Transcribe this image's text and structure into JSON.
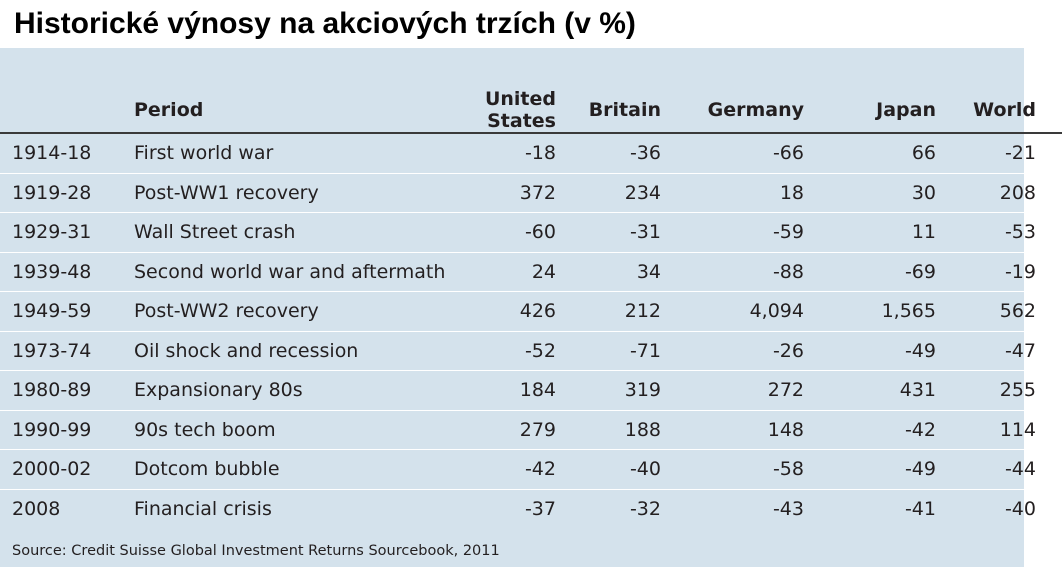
{
  "title": "Historické výnosy na akciových trzích (v %)",
  "chart_data": {
    "type": "table",
    "columns": [
      "",
      "Period",
      "United States",
      "Britain",
      "Germany",
      "Japan",
      "World"
    ],
    "rows": [
      {
        "years": "1914-18",
        "period": "First world war",
        "us": "-18",
        "gb": "-36",
        "de": "-66",
        "jp": "66",
        "world": "-21"
      },
      {
        "years": "1919-28",
        "period": "Post-WW1 recovery",
        "us": "372",
        "gb": "234",
        "de": "18",
        "jp": "30",
        "world": "208"
      },
      {
        "years": "1929-31",
        "period": "Wall Street crash",
        "us": "-60",
        "gb": "-31",
        "de": "-59",
        "jp": "11",
        "world": "-53"
      },
      {
        "years": "1939-48",
        "period": "Second world war and aftermath",
        "us": "24",
        "gb": "34",
        "de": "-88",
        "jp": "-69",
        "world": "-19"
      },
      {
        "years": "1949-59",
        "period": "Post-WW2 recovery",
        "us": "426",
        "gb": "212",
        "de": "4,094",
        "jp": "1,565",
        "world": "562"
      },
      {
        "years": "1973-74",
        "period": "Oil shock and recession",
        "us": "-52",
        "gb": "-71",
        "de": "-26",
        "jp": "-49",
        "world": "-47"
      },
      {
        "years": "1980-89",
        "period": "Expansionary 80s",
        "us": "184",
        "gb": "319",
        "de": "272",
        "jp": "431",
        "world": "255"
      },
      {
        "years": "1990-99",
        "period": "90s tech boom",
        "us": "279",
        "gb": "188",
        "de": "148",
        "jp": "-42",
        "world": "114"
      },
      {
        "years": "2000-02",
        "period": "Dotcom bubble",
        "us": "-42",
        "gb": "-40",
        "de": "-58",
        "jp": "-49",
        "world": "-44"
      },
      {
        "years": "2008",
        "period": "Financial crisis",
        "us": "-37",
        "gb": "-32",
        "de": "-43",
        "jp": "-41",
        "world": "-40"
      }
    ],
    "source": "Source: Credit Suisse Global Investment Returns Sourcebook, 2011"
  },
  "colors": {
    "panel_background": "#d4e2ec",
    "row_divider": "#ffffff",
    "header_rule": "#3a3a3a",
    "text": "#231f20"
  }
}
